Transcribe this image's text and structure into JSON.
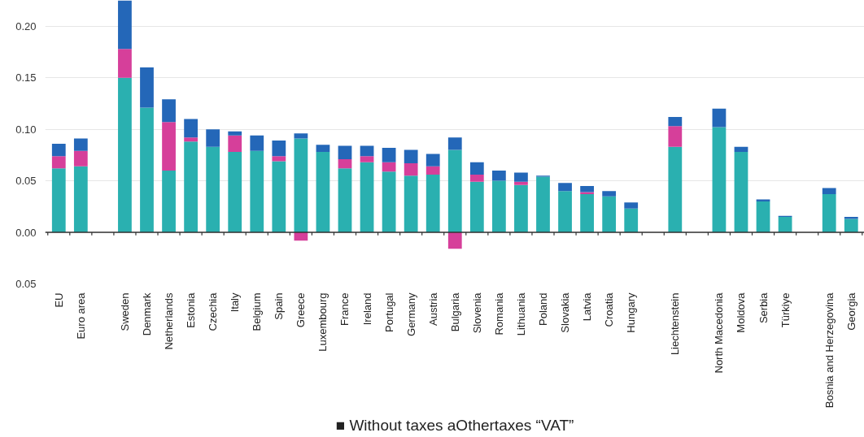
{
  "chart_data": {
    "type": "bar",
    "stacked": true,
    "categories": [
      "EU",
      "Euro area",
      null,
      "Sweden",
      "Denmark",
      "Netherlands",
      "Estonia",
      "Czechia",
      "Italy",
      "Belgium",
      "Spain",
      "Greece",
      "Luxembourg",
      "France",
      "Ireland",
      "Portugal",
      "Germany",
      "Austria",
      "Bulgaria",
      "Slovenia",
      "Romania",
      "Lithuania",
      "Poland",
      "Slovakia",
      "Latvia",
      "Croatia",
      "Hungary",
      null,
      "Liechtenstein",
      null,
      "North Macedonia",
      "Moldova",
      "Serbia",
      "Türkiye",
      null,
      "Bosnia and Herzegovina",
      "Georgia"
    ],
    "series": [
      {
        "color": "#2ab0b0",
        "values": [
          0.062,
          0.064,
          null,
          0.15,
          0.121,
          0.06,
          0.088,
          0.083,
          0.078,
          0.079,
          0.069,
          0.091,
          0.078,
          0.062,
          0.068,
          0.059,
          0.055,
          0.056,
          0.08,
          0.049,
          0.05,
          0.046,
          0.054,
          0.04,
          0.037,
          0.035,
          0.023,
          null,
          0.083,
          null,
          0.102,
          0.078,
          0.03,
          0.015,
          null,
          0.037,
          0.013
        ]
      },
      {
        "color": "#d63f9a",
        "values": [
          0.012,
          0.015,
          null,
          0.028,
          0.0,
          0.047,
          0.004,
          0.0,
          0.016,
          0.0,
          0.005,
          -0.008,
          0.0,
          0.009,
          0.006,
          0.009,
          0.012,
          0.008,
          -0.016,
          0.007,
          0.0,
          0.003,
          0.0,
          0.0,
          0.002,
          0.0,
          0.0,
          null,
          0.02,
          null,
          0.0,
          0.0,
          0.0,
          0.0,
          null,
          0.0,
          0.0
        ]
      },
      {
        "color": "#2467b8",
        "values": [
          0.012,
          0.012,
          null,
          0.047,
          0.039,
          0.022,
          0.018,
          0.017,
          0.004,
          0.015,
          0.015,
          0.005,
          0.007,
          0.013,
          0.01,
          0.014,
          0.013,
          0.012,
          0.012,
          0.012,
          0.01,
          0.009,
          0.001,
          0.008,
          0.006,
          0.005,
          0.006,
          null,
          0.009,
          null,
          0.018,
          0.005,
          0.002,
          0.001,
          null,
          0.006,
          0.002
        ]
      }
    ],
    "ylim": [
      -0.05,
      0.225
    ],
    "yticks": [
      {
        "value": -0.05,
        "label": "0.05"
      },
      {
        "value": 0,
        "label": "0.00"
      },
      0.05,
      {
        "value": 0.1,
        "label": "0.10"
      },
      0.15,
      {
        "value": 0.2,
        "label": "0.20"
      }
    ],
    "grid": "y",
    "annotations": [
      "■ Without taxes aOthertaxes “VAT”"
    ]
  }
}
